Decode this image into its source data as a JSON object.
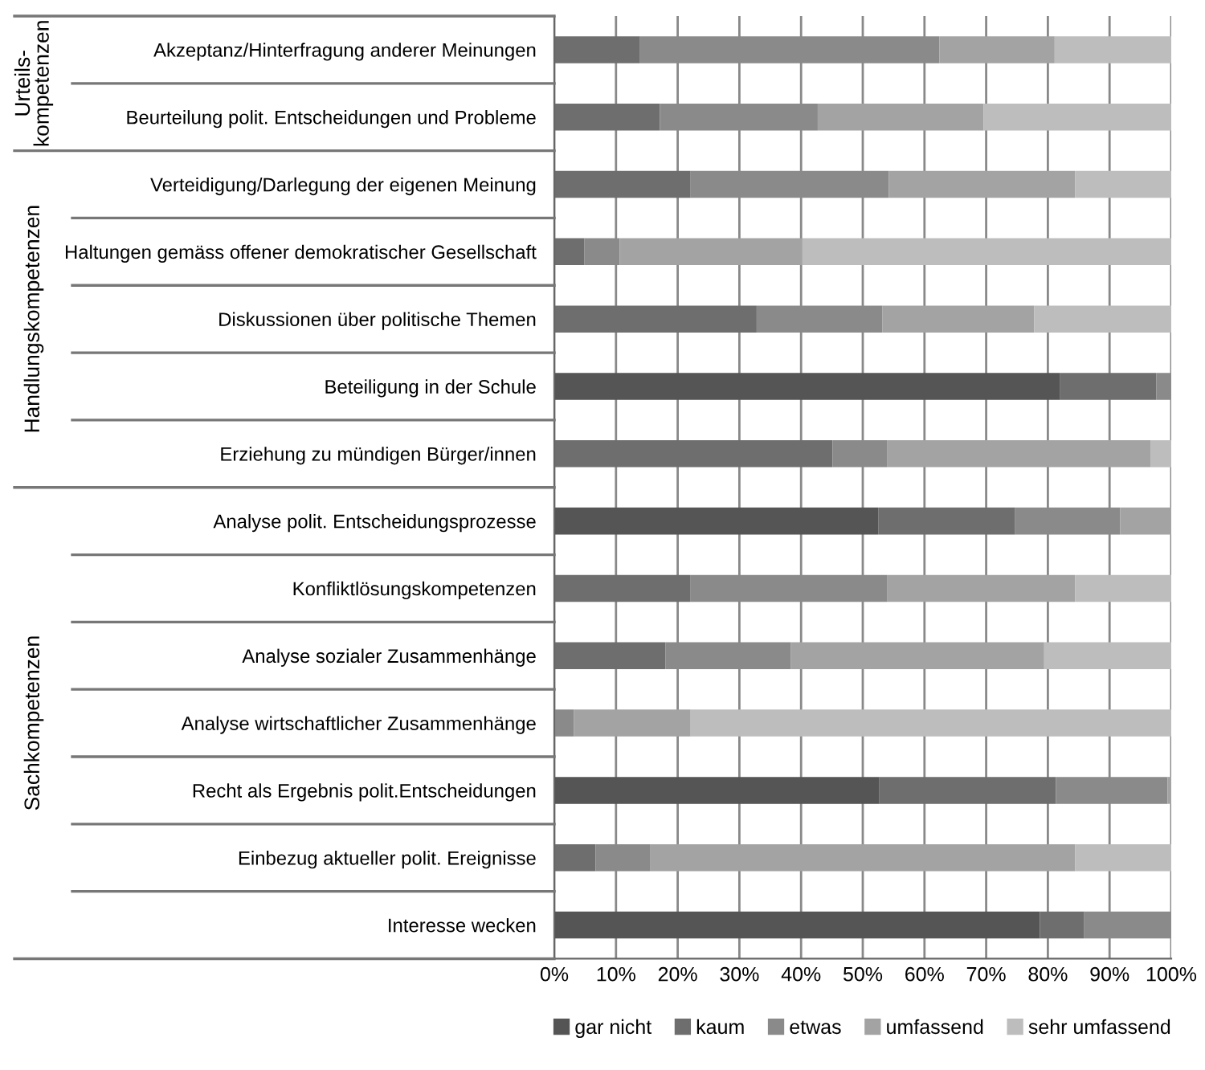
{
  "chart_data": {
    "type": "bar",
    "orientation": "horizontal",
    "stacked": true,
    "categories": [
      "Akzeptanz/Hinterfragung anderer Meinungen",
      "Beurteilung polit. Entscheidungen und Probleme",
      "Verteidigung/Darlegung der eigenen Meinung",
      "Haltungen gemäss offener demokratischer Gesellschaft",
      "Diskussionen über politische Themen",
      "Beteiligung in der Schule",
      "Erziehung zu mündigen Bürger/innen",
      "Analyse polit. Entscheidungsprozesse",
      "Konfliktlösungskompetenzen",
      "Analyse sozialer Zusammenhänge",
      "Analyse wirtschaftlicher Zusammenhänge",
      "Recht als Ergebnis polit.Entscheidungen",
      "Einbezug aktueller polit. Ereignisse",
      "Interesse wecken"
    ],
    "series": [
      {
        "name": "gar nicht",
        "color": "#555555",
        "values": [
          0,
          0,
          0,
          0,
          0,
          82.0,
          0,
          52.5,
          0,
          0,
          0,
          52.7,
          0,
          78.7
        ]
      },
      {
        "name": "kaum",
        "color": "#6e6e6e",
        "values": [
          13.9,
          17.1,
          22.1,
          4.9,
          32.8,
          15.6,
          45.1,
          22.2,
          22.1,
          18.0,
          0,
          28.6,
          6.7,
          7.2
        ]
      },
      {
        "name": "etwas",
        "color": "#8a8a8a",
        "values": [
          48.5,
          25.6,
          32.1,
          5.7,
          20.4,
          2.4,
          8.9,
          17.0,
          31.9,
          20.3,
          3.2,
          18.1,
          8.8,
          14.1
        ]
      },
      {
        "name": "umfassend",
        "color": "#a3a3a3",
        "values": [
          18.7,
          26.9,
          30.2,
          29.6,
          24.6,
          0,
          42.7,
          8.3,
          30.4,
          41.1,
          18.9,
          0.6,
          68.9,
          0
        ]
      },
      {
        "name": "sehr umfassend",
        "color": "#bdbdbd",
        "values": [
          18.9,
          30.4,
          15.6,
          59.8,
          22.2,
          0,
          3.3,
          0,
          15.6,
          20.6,
          77.9,
          0,
          15.6,
          0
        ]
      }
    ],
    "xlim": [
      0,
      100
    ],
    "xticks": [
      {
        "value": 0,
        "label": "0%"
      },
      {
        "value": 10,
        "label": "10%"
      },
      {
        "value": 20,
        "label": "20%"
      },
      {
        "value": 30,
        "label": "30%"
      },
      {
        "value": 40,
        "label": "40%"
      },
      {
        "value": 50,
        "label": "50%"
      },
      {
        "value": 60,
        "label": "60%"
      },
      {
        "value": 70,
        "label": "70%"
      },
      {
        "value": 80,
        "label": "80%"
      },
      {
        "value": 90,
        "label": "90%"
      },
      {
        "value": 100,
        "label": "100%"
      }
    ],
    "grid": "x",
    "legend": "bottom",
    "annotations": [
      "Urteils-\nkompetenzen",
      "Handlungskompetenzen",
      "Sachkompetenzen"
    ]
  }
}
